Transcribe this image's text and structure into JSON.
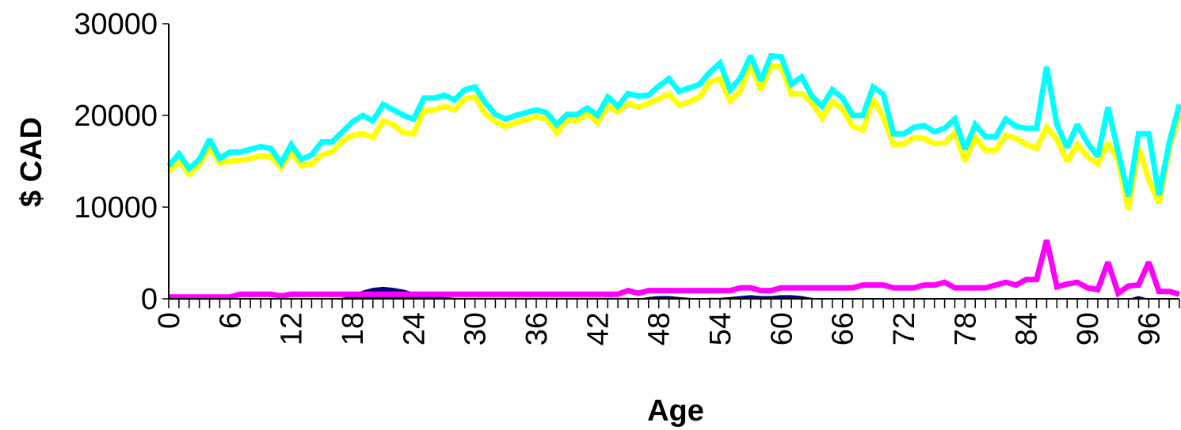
{
  "chart_data": {
    "type": "line",
    "title": "",
    "xlabel": "Age",
    "ylabel": "$ CAD",
    "xlim": [
      0,
      99
    ],
    "ylim": [
      0,
      30000
    ],
    "y_ticks": [
      0,
      10000,
      20000,
      30000
    ],
    "x_ticks": [
      0,
      6,
      12,
      18,
      24,
      30,
      36,
      42,
      48,
      54,
      60,
      66,
      72,
      78,
      84,
      90,
      96
    ],
    "legend": "none",
    "grid": false,
    "x": [
      0,
      1,
      2,
      3,
      4,
      5,
      6,
      7,
      8,
      9,
      10,
      11,
      12,
      13,
      14,
      15,
      16,
      17,
      18,
      19,
      20,
      21,
      22,
      23,
      24,
      25,
      26,
      27,
      28,
      29,
      30,
      31,
      32,
      33,
      34,
      35,
      36,
      37,
      38,
      39,
      40,
      41,
      42,
      43,
      44,
      45,
      46,
      47,
      48,
      49,
      50,
      51,
      52,
      53,
      54,
      55,
      56,
      57,
      58,
      59,
      60,
      61,
      62,
      63,
      64,
      65,
      66,
      67,
      68,
      69,
      70,
      71,
      72,
      73,
      74,
      75,
      76,
      77,
      78,
      79,
      80,
      81,
      82,
      83,
      84,
      85,
      86,
      87,
      88,
      89,
      90,
      91,
      92,
      93,
      94,
      95,
      96,
      97,
      98,
      99
    ],
    "series": [
      {
        "color": "#000080",
        "style": "area",
        "values": [
          0,
          0,
          0,
          0,
          0,
          0,
          0,
          0,
          0,
          0,
          0,
          0,
          0,
          0,
          0,
          0,
          0,
          100,
          400,
          900,
          1200,
          1300,
          1200,
          1000,
          700,
          400,
          300,
          200,
          100,
          100,
          100,
          100,
          100,
          100,
          100,
          100,
          100,
          100,
          100,
          100,
          100,
          100,
          100,
          100,
          100,
          100,
          0,
          200,
          300,
          300,
          200,
          100,
          0,
          100,
          100,
          200,
          300,
          400,
          300,
          300,
          400,
          400,
          300,
          100,
          0,
          0,
          0,
          0,
          0,
          0,
          0,
          0,
          0,
          0,
          0,
          0,
          0,
          0,
          0,
          0,
          0,
          0,
          0,
          0,
          0,
          0,
          0,
          0,
          0,
          0,
          0,
          0,
          0,
          0,
          0,
          300,
          0,
          0,
          0,
          0
        ]
      },
      {
        "color": "#ff00ff",
        "style": "line",
        "values": [
          200,
          200,
          200,
          200,
          200,
          200,
          200,
          500,
          500,
          500,
          500,
          300,
          500,
          500,
          500,
          500,
          500,
          500,
          500,
          500,
          500,
          500,
          500,
          500,
          500,
          500,
          500,
          500,
          500,
          500,
          500,
          500,
          500,
          500,
          500,
          500,
          500,
          500,
          500,
          500,
          500,
          500,
          500,
          500,
          500,
          900,
          600,
          900,
          900,
          900,
          900,
          900,
          900,
          900,
          900,
          900,
          1200,
          1200,
          900,
          900,
          1200,
          1200,
          1200,
          1200,
          1200,
          1200,
          1200,
          1200,
          1500,
          1500,
          1500,
          1200,
          1200,
          1200,
          1500,
          1500,
          1800,
          1200,
          1200,
          1200,
          1200,
          1500,
          1800,
          1500,
          2100,
          2100,
          6400,
          1300,
          1600,
          1800,
          1200,
          1000,
          4000,
          600,
          1400,
          1500,
          4000,
          800,
          800,
          500
        ]
      },
      {
        "color": "#ffff00",
        "style": "line",
        "values": [
          13900,
          15000,
          13600,
          14600,
          16500,
          14800,
          15000,
          15100,
          15300,
          15600,
          15500,
          14300,
          16000,
          14500,
          14700,
          15700,
          16000,
          17200,
          17800,
          18000,
          17600,
          19400,
          19000,
          18100,
          18000,
          20500,
          20600,
          21000,
          20600,
          21800,
          22000,
          20200,
          19300,
          18800,
          19200,
          19500,
          19900,
          19600,
          18100,
          19400,
          19400,
          20200,
          19200,
          21000,
          20400,
          21300,
          20900,
          21300,
          21800,
          22300,
          21100,
          21500,
          22000,
          23600,
          24000,
          21600,
          22700,
          25500,
          22800,
          25400,
          25300,
          22300,
          22400,
          21400,
          19700,
          21500,
          20700,
          18800,
          18400,
          21800,
          19800,
          16800,
          16900,
          17600,
          17500,
          16900,
          17000,
          18100,
          15000,
          17600,
          16200,
          16200,
          17800,
          17500,
          16800,
          16400,
          18700,
          17400,
          15000,
          16800,
          15500,
          14700,
          17000,
          15100,
          9700,
          16500,
          13000,
          10400,
          16500,
          20000
        ]
      },
      {
        "color": "#00ffff",
        "style": "line",
        "values": [
          14500,
          15800,
          14200,
          15200,
          17400,
          15300,
          16000,
          16000,
          16300,
          16600,
          16400,
          14800,
          16800,
          15200,
          15700,
          17100,
          17100,
          18200,
          19300,
          20000,
          19400,
          21200,
          20600,
          20000,
          19600,
          21900,
          21900,
          22200,
          21700,
          22800,
          23100,
          21400,
          20100,
          19600,
          20000,
          20300,
          20600,
          20300,
          19000,
          20100,
          20100,
          20800,
          20000,
          22000,
          21000,
          22400,
          22100,
          22200,
          23200,
          24000,
          22600,
          23000,
          23400,
          24700,
          25700,
          22800,
          24100,
          26500,
          23800,
          26500,
          26400,
          23400,
          24200,
          22100,
          21000,
          22800,
          21900,
          20000,
          20000,
          23100,
          22300,
          18000,
          18000,
          18700,
          18900,
          18200,
          18600,
          19600,
          16300,
          19000,
          17700,
          17700,
          19600,
          18800,
          18600,
          18600,
          25300,
          19000,
          16500,
          19000,
          17000,
          15500,
          20900,
          16000,
          11200,
          18000,
          18000,
          11300,
          17000,
          21200
        ]
      }
    ]
  }
}
